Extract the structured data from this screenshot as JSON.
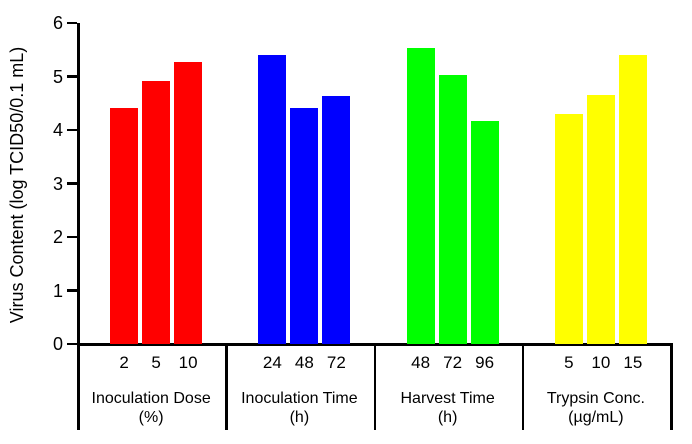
{
  "chart_data": {
    "type": "bar",
    "title": "",
    "ylabel": "Virus Content (log TCID50/0.1 mL)",
    "xlabel": "",
    "ylim": [
      0,
      6
    ],
    "yticks": [
      0,
      1,
      2,
      3,
      4,
      5,
      6
    ],
    "grid": false,
    "legend": false,
    "background": "#ffffff",
    "axis_color": "#000000",
    "groups": [
      {
        "label": "Inoculation Dose",
        "unit": "(%)",
        "color": "#ff0000",
        "categories": [
          "2",
          "5",
          "10"
        ],
        "values": [
          4.42,
          4.92,
          5.28
        ]
      },
      {
        "label": "Inoculation Time",
        "unit": "(h)",
        "color": "#0000ff",
        "categories": [
          "24",
          "48",
          "72"
        ],
        "values": [
          5.41,
          4.42,
          4.64
        ]
      },
      {
        "label": "Harvest Time",
        "unit": "(h)",
        "color": "#00ff00",
        "categories": [
          "48",
          "72",
          "96"
        ],
        "values": [
          5.53,
          5.02,
          4.17
        ]
      },
      {
        "label": "Trypsin Conc.",
        "unit": "(µg/mL)",
        "color": "#ffff00",
        "categories": [
          "5",
          "10",
          "15"
        ],
        "values": [
          4.3,
          4.65,
          5.41
        ]
      }
    ]
  }
}
